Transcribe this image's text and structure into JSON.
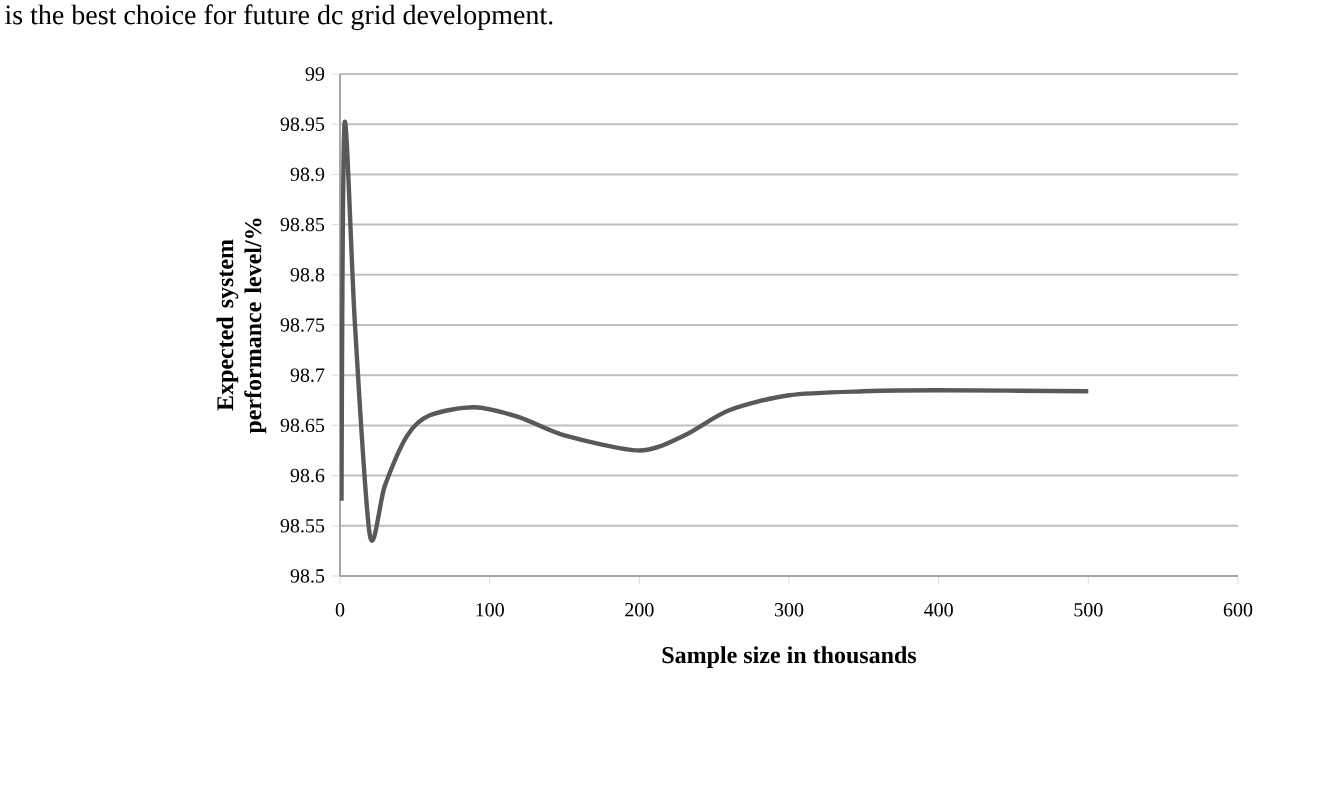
{
  "chart_data": {
    "type": "line",
    "xlabel": "Sample size in thousands",
    "ylabel": "Expected system performance level/%",
    "annotations": [
      "is the best choice for future dc grid development."
    ],
    "x": [
      1,
      3,
      10,
      20,
      30,
      45,
      60,
      90,
      120,
      150,
      200,
      230,
      260,
      300,
      350,
      400,
      500
    ],
    "series": [
      {
        "color": "#595959",
        "values": [
          98.575,
          98.95,
          98.75,
          98.54,
          98.59,
          98.64,
          98.66,
          98.668,
          98.658,
          98.64,
          98.625,
          98.64,
          98.665,
          98.68,
          98.684,
          98.685,
          98.684
        ]
      }
    ],
    "xlim": [
      0,
      600
    ],
    "xticks": [
      0,
      100,
      200,
      300,
      400,
      500,
      600
    ],
    "ylim": [
      98.5,
      99
    ],
    "yticks": [
      98.5,
      98.55,
      98.6,
      98.65,
      98.7,
      98.75,
      98.8,
      98.85,
      98.9,
      98.95,
      99
    ],
    "grid": "y",
    "marker": "none",
    "line_style": "solid"
  }
}
